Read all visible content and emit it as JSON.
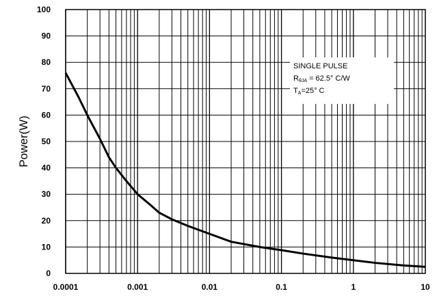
{
  "chart_data": {
    "type": "line",
    "title": "",
    "xlabel": "",
    "ylabel": "Power(W)",
    "x_scale": "log",
    "xlim": [
      0.0001,
      10
    ],
    "ylim": [
      0,
      100
    ],
    "x_ticks": [
      "0.0001",
      "0.001",
      "0.01",
      "0.1",
      "1",
      "10"
    ],
    "y_ticks": [
      "0",
      "10",
      "20",
      "30",
      "40",
      "50",
      "60",
      "70",
      "80",
      "90",
      "100"
    ],
    "grid": true,
    "annotation": {
      "line1": "SINGLE PULSE",
      "line2_main": "R",
      "line2_sub": "θJA",
      "line2_rest": " = 62.5° C/W",
      "line3_main": "T",
      "line3_sub": "A",
      "line3_rest": "=25° C"
    },
    "series": [
      {
        "x": [
          0.0001,
          0.00015,
          0.0002,
          0.0003,
          0.0004,
          0.0005,
          0.0007,
          0.001,
          0.0015,
          0.002,
          0.003,
          0.005,
          0.01,
          0.02,
          0.05,
          0.1,
          0.2,
          0.5,
          1,
          2,
          5,
          10
        ],
        "y": [
          76,
          67,
          60,
          51,
          44,
          40,
          35,
          30,
          26,
          23,
          20.5,
          18,
          15,
          12,
          10,
          8.8,
          7.5,
          6,
          5,
          4,
          3,
          2.5
        ]
      }
    ]
  }
}
